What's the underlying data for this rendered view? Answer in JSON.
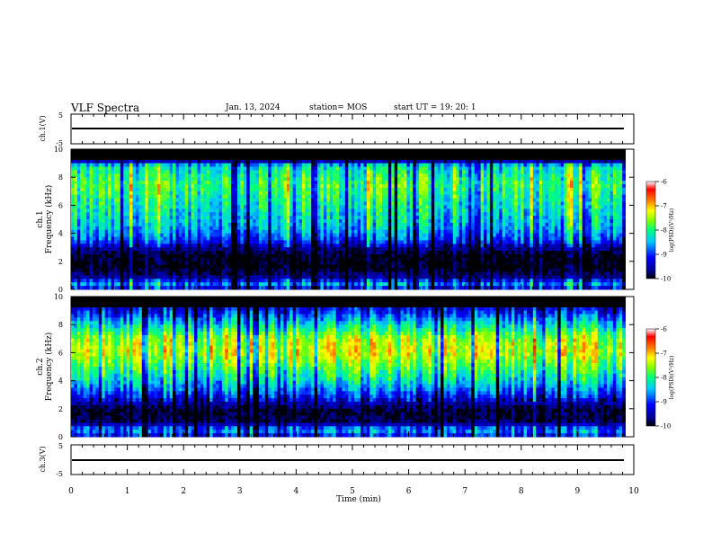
{
  "header": {
    "title": "VLF Spectra",
    "date": "Jan. 13, 2024",
    "station": "station= MOS",
    "start": "start  UT  =   19: 20: 1"
  },
  "chart_data": [
    {
      "type": "line",
      "panel": "ch1-voltage",
      "ylabel": "ch.1(V)",
      "ylim": [
        -5,
        5
      ],
      "yticks": [
        "5",
        "-5"
      ],
      "xlim": [
        0,
        10
      ],
      "series": [
        {
          "values_note": "",
          "level": 0
        }
      ]
    },
    {
      "type": "heatmap",
      "panel": "ch1-spectrogram",
      "ylabel": "ch.1\nFrequency (kHz)",
      "ylabel_lines": [
        "ch.1",
        "Frequency (kHz)"
      ],
      "ylim": [
        0,
        10
      ],
      "yticks": [
        "0",
        "2",
        "4",
        "6",
        "8",
        "10"
      ],
      "xlim": [
        0,
        10
      ],
      "data_end_min": 9.85,
      "colorbar": {
        "label": "log(PSD)(V²/Hz)",
        "range": [
          -10,
          -6
        ],
        "ticks": [
          "-6",
          "-7",
          "-8",
          "-9",
          "-10"
        ]
      },
      "spectral_profile": [
        {
          "f": 0.0,
          "v": -9.4
        },
        {
          "f": 0.4,
          "v": -8.7
        },
        {
          "f": 0.8,
          "v": -9.6
        },
        {
          "f": 1.5,
          "v": -10.0
        },
        {
          "f": 2.4,
          "v": -10.0
        },
        {
          "f": 3.0,
          "v": -9.6
        },
        {
          "f": 3.5,
          "v": -9.0
        },
        {
          "f": 4.5,
          "v": -8.5
        },
        {
          "f": 6.0,
          "v": -8.2
        },
        {
          "f": 7.5,
          "v": -7.9
        },
        {
          "f": 8.8,
          "v": -8.3
        },
        {
          "f": 9.2,
          "v": -9.8
        },
        {
          "f": 10.0,
          "v": -10.0
        }
      ]
    },
    {
      "type": "heatmap",
      "panel": "ch2-spectrogram",
      "ylabel_lines": [
        "ch.2",
        "Frequency (kHz)"
      ],
      "ylim": [
        0,
        10
      ],
      "yticks": [
        "0",
        "2",
        "4",
        "6",
        "8",
        "10"
      ],
      "xlim": [
        0,
        10
      ],
      "data_end_min": 9.85,
      "colorbar": {
        "label": "log(PSD)(V²/Hz)",
        "range": [
          -10,
          -6
        ],
        "ticks": [
          "-6",
          "-7",
          "-8",
          "-9",
          "-10"
        ]
      },
      "spectral_profile": [
        {
          "f": 0.0,
          "v": -9.2
        },
        {
          "f": 0.5,
          "v": -8.6
        },
        {
          "f": 1.0,
          "v": -9.8
        },
        {
          "f": 2.0,
          "v": -9.9
        },
        {
          "f": 3.0,
          "v": -9.0
        },
        {
          "f": 4.0,
          "v": -8.3
        },
        {
          "f": 5.0,
          "v": -7.8
        },
        {
          "f": 6.0,
          "v": -7.3
        },
        {
          "f": 7.0,
          "v": -7.5
        },
        {
          "f": 8.0,
          "v": -8.3
        },
        {
          "f": 9.0,
          "v": -9.2
        },
        {
          "f": 10.0,
          "v": -9.8
        }
      ]
    },
    {
      "type": "line",
      "panel": "ch3-voltage",
      "ylabel": "ch.3(V)",
      "ylim": [
        -5,
        5
      ],
      "yticks": [
        "5",
        "-5"
      ],
      "xlim": [
        0,
        10
      ],
      "series": [
        {
          "level": 0
        }
      ]
    }
  ],
  "xaxis": {
    "label": "Time (min)",
    "ticks": [
      "0",
      "1",
      "2",
      "3",
      "4",
      "5",
      "6",
      "7",
      "8",
      "9",
      "10"
    ],
    "range": [
      0,
      10
    ]
  },
  "colors": {
    "colormap": [
      "#000000",
      "#00008b",
      "#0000ff",
      "#00c8ff",
      "#00ff80",
      "#80ff00",
      "#ffff00",
      "#ff8000",
      "#ff0000",
      "#ffffff"
    ]
  }
}
